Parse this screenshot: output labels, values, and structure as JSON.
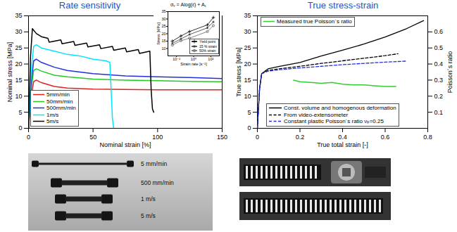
{
  "chart_data": [
    {
      "type": "line",
      "title": "Rate sensitivity",
      "x_label": "Nominal strain [%]",
      "y_label": "Nominal stress [MPa]",
      "xlim": [
        0,
        150
      ],
      "xticks": [
        0,
        50,
        100,
        150
      ],
      "ylim": [
        0,
        35
      ],
      "yticks": [
        0,
        5,
        10,
        15,
        20,
        25,
        30,
        35
      ],
      "grid": false,
      "legend": "lower left",
      "series": [
        {
          "name": "5mm/min",
          "color": "#e02020",
          "line_style": "solid",
          "x": [
            0,
            2,
            4,
            6,
            10,
            20,
            30,
            50,
            75,
            100,
            125,
            150
          ],
          "values": [
            0,
            10,
            14.5,
            15,
            14.2,
            13,
            12.5,
            12.2,
            12.1,
            12,
            12,
            12
          ]
        },
        {
          "name": "50mm/min",
          "color": "#22cc22",
          "line_style": "solid",
          "x": [
            0,
            2,
            4,
            6,
            10,
            20,
            30,
            50,
            75,
            100,
            125,
            150
          ],
          "values": [
            0,
            12,
            18,
            18.5,
            17.8,
            16.5,
            16,
            15.3,
            15,
            14.8,
            14.6,
            14.5
          ]
        },
        {
          "name": "500mm/min",
          "color": "#2030e0",
          "line_style": "solid",
          "x": [
            0,
            2,
            4,
            6,
            10,
            20,
            30,
            50,
            75,
            100,
            125,
            150
          ],
          "values": [
            0,
            14,
            21,
            21.5,
            20.5,
            19,
            18,
            17,
            16.3,
            16,
            15.8,
            15.5
          ]
        },
        {
          "name": "1m/s",
          "color": "#00e5ff",
          "line_style": "solid",
          "x": [
            0,
            2,
            4,
            6,
            10,
            20,
            30,
            40,
            50,
            60,
            63,
            64,
            65,
            66
          ],
          "values": [
            0,
            18,
            25.5,
            26,
            25,
            24,
            23,
            22.5,
            21.5,
            21,
            20.5,
            12,
            3,
            0
          ]
        },
        {
          "name": "5m/s",
          "color": "#000000",
          "line_style": "solid",
          "x": [
            0,
            1.5,
            3,
            6,
            10,
            15,
            16,
            25,
            26,
            35,
            36,
            45,
            46,
            55,
            56,
            65,
            66,
            75,
            76,
            85,
            86,
            94,
            95,
            96,
            97
          ],
          "values": [
            0,
            22,
            31,
            29.5,
            28.5,
            28,
            26.8,
            27.5,
            26.3,
            27,
            25.8,
            26.5,
            25.3,
            26,
            24.8,
            25.5,
            24.3,
            25,
            23.8,
            24.5,
            23.3,
            24,
            12,
            6,
            5
          ]
        }
      ]
    },
    {
      "type": "scatter",
      "title": "σᵧ = Alog(ε̇) + A₁",
      "x_label": "Strain rate [s⁻¹]",
      "y_label": "Stress [MPa]",
      "log": "x",
      "xlim": [
        0.001,
        1000
      ],
      "xticks": [
        {
          "value": 0.01,
          "label": "10⁻²"
        },
        {
          "value": 1,
          "label": "10⁰"
        },
        {
          "value": 100,
          "label": "10²"
        }
      ],
      "ylim": [
        5,
        35
      ],
      "yticks": [
        10,
        15,
        20,
        25,
        30,
        35
      ],
      "grid": false,
      "legend": "lower right",
      "series": [
        {
          "name": "Yield point",
          "color": "#000000",
          "marker": "plus",
          "line_style": "solid",
          "x": [
            0.0033,
            0.033,
            0.33,
            40,
            200
          ],
          "values": [
            15,
            18.5,
            21.5,
            26,
            31
          ]
        },
        {
          "name": "15 % strain",
          "color": "#333333",
          "marker": "asterisk",
          "line_style": "solid",
          "x": [
            0.0033,
            0.033,
            0.33,
            40,
            200
          ],
          "values": [
            13.5,
            16.5,
            19.5,
            24,
            28
          ]
        },
        {
          "name": "50% strain",
          "color": "#666666",
          "marker": "circle",
          "line_style": "solid",
          "x": [
            0.0033,
            0.033,
            0.33,
            40,
            200
          ],
          "values": [
            12.3,
            15.3,
            17,
            21.5,
            25.5
          ]
        }
      ]
    },
    {
      "type": "line",
      "title": "True stress-strain",
      "x_label": "True total strain [-]",
      "y_label": "True stress [MPa]",
      "y2_label": "Poisson´s ratio",
      "xlim": [
        0,
        0.8
      ],
      "xticks": [
        0,
        0.2,
        0.4,
        0.6,
        0.8
      ],
      "ylim": [
        0,
        35
      ],
      "yticks": [
        0,
        5,
        10,
        15,
        20,
        25,
        30,
        35
      ],
      "y2lim": [
        0,
        0.7
      ],
      "y2ticks": [
        0.1,
        0.2,
        0.3,
        0.4,
        0.5,
        0.6
      ],
      "grid": false,
      "legend": "lower right",
      "series": [
        {
          "name": "Measured true Poisson´s ratio",
          "color": "#33cc33",
          "line_style": "solid",
          "axis": "y2",
          "x": [
            0.17,
            0.2,
            0.25,
            0.3,
            0.35,
            0.4,
            0.45,
            0.5,
            0.55,
            0.6,
            0.65
          ],
          "values": [
            0.3,
            0.29,
            0.285,
            0.28,
            0.285,
            0.275,
            0.27,
            0.27,
            0.265,
            0.26,
            0.26
          ]
        },
        {
          "name": "Const. volume and homogenous deformation",
          "color": "#000000",
          "line_style": "solid",
          "x": [
            0,
            0.01,
            0.02,
            0.05,
            0.1,
            0.2,
            0.3,
            0.4,
            0.5,
            0.6,
            0.7,
            0.78
          ],
          "values": [
            0,
            12,
            17,
            18.5,
            19.2,
            20.5,
            22.5,
            24.3,
            26.2,
            28.4,
            31,
            33.5
          ]
        },
        {
          "name": "From video-extensometer",
          "color": "#000000",
          "line_style": "dashed",
          "x": [
            0,
            0.01,
            0.02,
            0.05,
            0.1,
            0.2,
            0.3,
            0.4,
            0.5,
            0.6,
            0.66
          ],
          "values": [
            0,
            12,
            17,
            18,
            18.5,
            19.3,
            20.2,
            21,
            21.8,
            22.6,
            23.2
          ]
        },
        {
          "name": "Constant plastic Poisson´s ratio νₚ=0.25",
          "color": "#2030e0",
          "line_style": "dashed",
          "x": [
            0,
            0.01,
            0.02,
            0.05,
            0.1,
            0.2,
            0.3,
            0.4,
            0.5,
            0.6,
            0.7
          ],
          "values": [
            0,
            12,
            17,
            17.8,
            18.2,
            18.8,
            19.3,
            19.8,
            20.2,
            20.6,
            20.9
          ]
        }
      ]
    }
  ],
  "specimen_photo": {
    "labels": [
      "5 mm/min",
      "500 mm/min",
      "1 m/s",
      "5 m/s"
    ]
  }
}
